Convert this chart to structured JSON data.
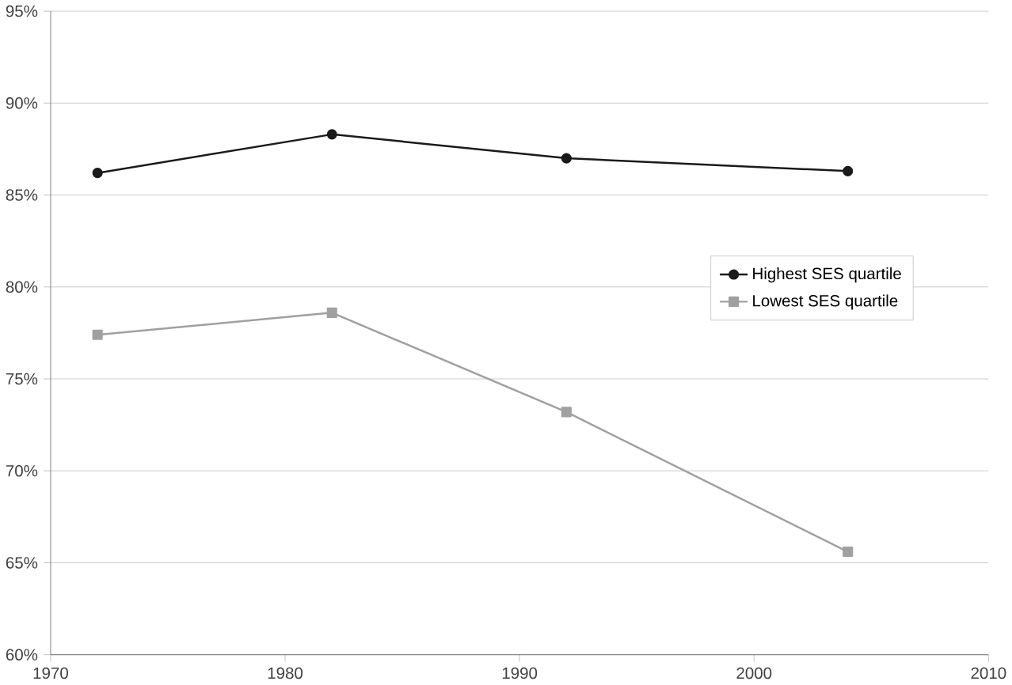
{
  "chart_data": {
    "type": "line",
    "x": [
      1972,
      1982,
      1992,
      2004
    ],
    "series": [
      {
        "name": "Highest SES quartile",
        "color": "#1a1a1a",
        "marker": "circle",
        "values": [
          86.2,
          88.3,
          87.0,
          86.3
        ]
      },
      {
        "name": "Lowest SES quartile",
        "color": "#a0a0a0",
        "marker": "square",
        "values": [
          77.4,
          78.6,
          73.2,
          65.6
        ]
      }
    ],
    "xlim": [
      1970,
      2010
    ],
    "xticks": [
      1970,
      1980,
      1990,
      2000,
      2010
    ],
    "ylim": [
      60,
      95
    ],
    "yticks": [
      {
        "value": 60,
        "label": "60%"
      },
      {
        "value": 65,
        "label": "65%"
      },
      {
        "value": 70,
        "label": "70%"
      },
      {
        "value": 75,
        "label": "75%"
      },
      {
        "value": 80,
        "label": "80%"
      },
      {
        "value": 85,
        "label": "85%"
      },
      {
        "value": 90,
        "label": "90%"
      },
      {
        "value": 95,
        "label": "95%"
      }
    ],
    "grid": "y",
    "legend": "right"
  }
}
